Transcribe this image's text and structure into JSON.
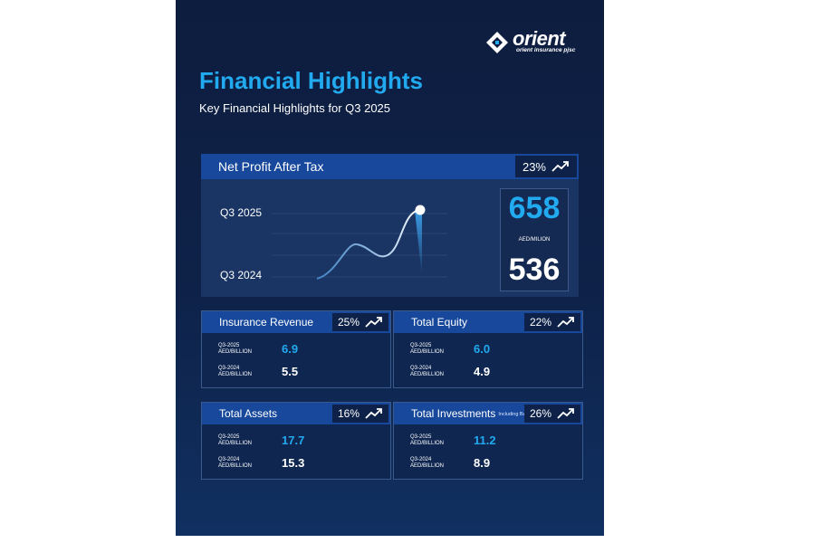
{
  "brand": {
    "name": "orient",
    "tagline": "orient insurance pjsc",
    "colors": {
      "accent": "#22aaf0",
      "header": "#17489b",
      "background": "#0e2249"
    }
  },
  "title": "Financial Highlights",
  "subtitle": "Key Financial Highlights for Q3 2025",
  "net_profit": {
    "label": "Net Profit After Tax",
    "change": "23%",
    "current_label": "Q3 2025",
    "previous_label": "Q3 2024",
    "current_value": "658",
    "unit": "AED/MILION",
    "previous_value": "536"
  },
  "cards": [
    {
      "label": "Insurance Revenue",
      "note": "",
      "change": "25%",
      "current_period": "Q3-2025",
      "current_unit": "AED/BILLION",
      "current_value": "6.9",
      "previous_period": "Q3-2024",
      "previous_unit": "AED/BILLION",
      "previous_value": "5.5"
    },
    {
      "label": "Total Equity",
      "note": "",
      "change": "22%",
      "current_period": "Q3-2025",
      "current_unit": "AED/BILLION",
      "current_value": "6.0",
      "previous_period": "Q3-2024",
      "previous_unit": "AED/BILLION",
      "previous_value": "4.9"
    },
    {
      "label": "Total Assets",
      "note": "",
      "change": "16%",
      "current_period": "Q3-2025",
      "current_unit": "AED/BILLION",
      "current_value": "17.7",
      "previous_period": "Q3-2024",
      "previous_unit": "AED/BILLION",
      "previous_value": "15.3"
    },
    {
      "label": "Total Investments",
      "note": "Including Bank Balances",
      "change": "26%",
      "current_period": "Q3-2025",
      "current_unit": "AED/BILLION",
      "current_value": "11.2",
      "previous_period": "Q3-2024",
      "previous_unit": "AED/BILLION",
      "previous_value": "8.9"
    }
  ],
  "icons": {
    "trend": "trend-up-icon",
    "logo": "orient-logo-icon"
  }
}
